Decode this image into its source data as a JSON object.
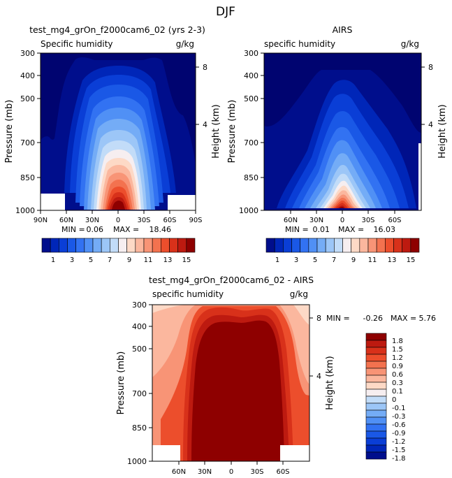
{
  "figure_title": "DJF",
  "colors": {
    "blues": [
      "#000e8c",
      "#0026b8",
      "#0a3ed6",
      "#1a58e6",
      "#3272f2",
      "#5090f5",
      "#74acf6",
      "#9cc6f7",
      "#c2dcf8"
    ],
    "neutral": "#f6eef0",
    "reds": [
      "#fdd9c6",
      "#fbb79e",
      "#f89476",
      "#f3724f",
      "#ec4e2c",
      "#d8311a",
      "#bd1a10",
      "#8e0000"
    ]
  },
  "chart_data": [
    {
      "type": "heatmap",
      "title": "test_mg4_grOn_f2000cam6_02 (yrs 2-3)",
      "left_label": "Specific humidity",
      "right_label": "g/kg",
      "ylabel": "Pressure (mb)",
      "y2label": "Height (km)",
      "y_ticks": [
        "300",
        "400",
        "500",
        "700",
        "850",
        "1000"
      ],
      "y2_ticks": [
        "8",
        "4"
      ],
      "x_ticks": [
        "90N",
        "60N",
        "30N",
        "0",
        "30S",
        "60S",
        "90S"
      ],
      "stats": {
        "min_label": "MIN =",
        "min": "0.06",
        "max_label": "MAX =",
        "max": "18.46"
      },
      "colorbar_labels": [
        "1",
        "3",
        "5",
        "7",
        "9",
        "11",
        "13",
        "15"
      ]
    },
    {
      "type": "heatmap",
      "title": "AIRS",
      "left_label": "specific humidity",
      "right_label": "g/kg",
      "ylabel": "Pressure (mb)",
      "y2label": "Height (km)",
      "y_ticks": [
        "300",
        "400",
        "500",
        "700",
        "850",
        "1000"
      ],
      "y2_ticks": [
        "8",
        "4"
      ],
      "x_ticks": [
        "60N",
        "30N",
        "0",
        "30S",
        "60S"
      ],
      "stats": {
        "min_label": "MIN =",
        "min": "0.01",
        "max_label": "MAX =",
        "max": "16.03"
      },
      "colorbar_labels": [
        "1",
        "3",
        "5",
        "7",
        "9",
        "11",
        "13",
        "15"
      ]
    },
    {
      "type": "heatmap",
      "title": "test_mg4_grOn_f2000cam6_02 - AIRS",
      "left_label": "specific humidity",
      "right_label": "g/kg",
      "ylabel": "Pressure (mb)",
      "y2label": "Height (km)",
      "y_ticks": [
        "300",
        "400",
        "500",
        "700",
        "850",
        "1000"
      ],
      "y2_ticks": [
        "8",
        "4"
      ],
      "x_ticks": [
        "60N",
        "30N",
        "0",
        "30S",
        "60S"
      ],
      "stats": {
        "min_label": "MIN =",
        "min": "-0.26",
        "max_label": "MAX =",
        "max": "5.76"
      },
      "colorbar_labels": [
        "1.8",
        "1.5",
        "1.2",
        "0.9",
        "0.6",
        "0.3",
        "0.1",
        "0",
        "-0.1",
        "-0.3",
        "-0.6",
        "-0.9",
        "-1.2",
        "-1.5",
        "-1.8"
      ]
    }
  ]
}
